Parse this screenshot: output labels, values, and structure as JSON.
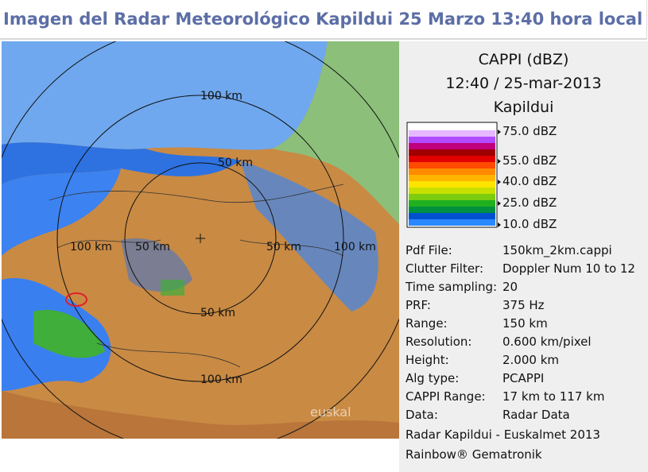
{
  "header": {
    "title": "Imagen del Radar Meteorológico Kapildui 25 Marzo 13:40 hora local"
  },
  "map": {
    "range_labels": [
      "100 km",
      "50 km",
      "100 km",
      "50 km",
      "50 km",
      "100 km",
      "50 km",
      "100 km"
    ],
    "watermark": "euskal"
  },
  "panel": {
    "product": "CAPPI (dBZ)",
    "time": "12:40 / 25-mar-2013",
    "site": "Kapildui",
    "legend": [
      "75.0 dBZ",
      "55.0 dBZ",
      "40.0 dBZ",
      "25.0 dBZ",
      "10.0 dBZ"
    ],
    "info": [
      [
        "Pdf File:",
        "150km_2km.cappi"
      ],
      [
        "Clutter Filter:",
        "Doppler Num 10 to 12"
      ],
      [
        "Time sampling:",
        "20"
      ],
      [
        "PRF:",
        "375 Hz"
      ],
      [
        "Range:",
        "150 km"
      ],
      [
        "Resolution:",
        "0.600 km/pixel"
      ],
      [
        "Height:",
        "2.000 km"
      ],
      [
        "Alg type:",
        "PCAPPI"
      ],
      [
        "CAPPI Range:",
        "17 km to 117 km"
      ],
      [
        "Data:",
        "Radar Data"
      ]
    ],
    "footer": [
      "Radar Kapildui - Euskalmet 2013",
      "Rainbow® Gematronik"
    ]
  }
}
